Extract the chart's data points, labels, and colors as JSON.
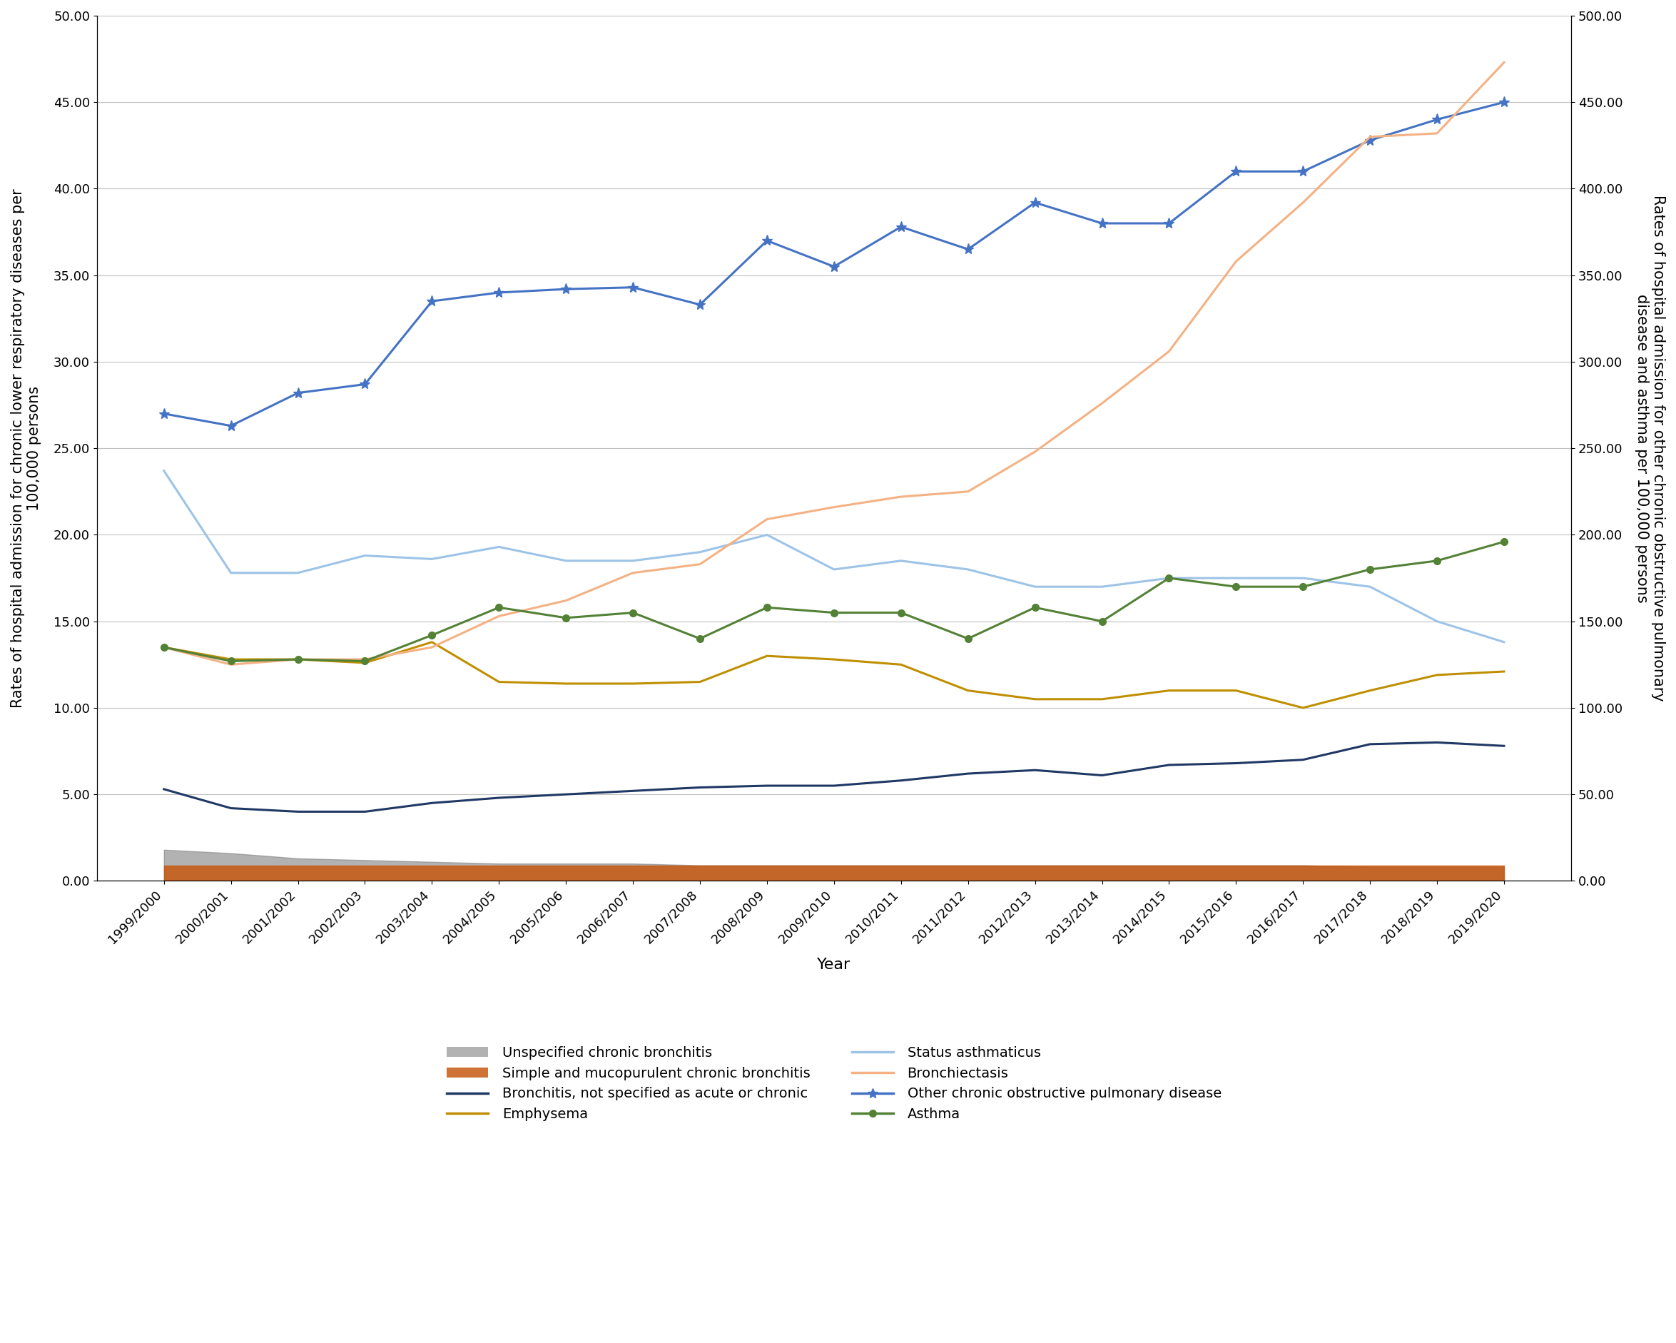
{
  "years": [
    "1999/2000",
    "2000/2001",
    "2001/2002",
    "2002/2003",
    "2003/2004",
    "2004/2005",
    "2005/2006",
    "2006/2007",
    "2007/2008",
    "2008/2009",
    "2009/2010",
    "2010/2011",
    "2011/2012",
    "2012/2013",
    "2013/2014",
    "2014/2015",
    "2015/2016",
    "2016/2017",
    "2017/2018",
    "2018/2019",
    "2019/2020"
  ],
  "unspecified_chronic_bronchitis": [
    1.8,
    1.6,
    1.3,
    1.2,
    1.1,
    1.0,
    1.0,
    1.0,
    0.9,
    0.9,
    0.9,
    0.9,
    0.9,
    0.9,
    0.9,
    0.9,
    0.9,
    0.9,
    0.8,
    0.8,
    0.8
  ],
  "simple_mucopurulent_bronchitis": [
    0.9,
    0.9,
    0.9,
    0.9,
    0.9,
    0.9,
    0.9,
    0.9,
    0.9,
    0.9,
    0.9,
    0.9,
    0.9,
    0.9,
    0.9,
    0.9,
    0.9,
    0.9,
    0.9,
    0.9,
    0.9
  ],
  "bronchitis_not_acute_chronic": [
    5.3,
    4.2,
    4.0,
    4.0,
    4.5,
    4.8,
    5.0,
    5.2,
    5.4,
    5.5,
    5.5,
    5.8,
    6.2,
    6.4,
    6.1,
    6.7,
    6.8,
    7.0,
    7.9,
    8.0,
    7.8
  ],
  "emphysema": [
    13.5,
    12.8,
    12.8,
    12.6,
    13.8,
    11.5,
    11.4,
    11.4,
    11.5,
    13.0,
    12.8,
    12.5,
    11.0,
    10.5,
    10.5,
    11.0,
    11.0,
    10.0,
    11.0,
    11.9,
    12.1
  ],
  "status_asthmaticus": [
    23.7,
    17.8,
    17.8,
    18.8,
    18.6,
    19.3,
    18.5,
    18.5,
    19.0,
    20.0,
    18.0,
    18.5,
    18.0,
    17.0,
    17.0,
    17.5,
    17.5,
    17.5,
    17.0,
    15.0,
    13.8
  ],
  "other_copd": [
    27.0,
    26.3,
    28.2,
    28.7,
    33.5,
    34.0,
    34.2,
    34.3,
    33.3,
    37.0,
    35.5,
    37.8,
    36.5,
    39.2,
    38.0,
    38.0,
    41.0,
    41.0,
    42.8,
    44.0,
    45.0
  ],
  "bronchiectasis": [
    135,
    125,
    128,
    128,
    135,
    153,
    162,
    178,
    183,
    209,
    216,
    222,
    225,
    248,
    276,
    306,
    358,
    392,
    430,
    432,
    473
  ],
  "asthma": [
    135,
    127,
    128,
    127,
    142,
    158,
    152,
    155,
    140,
    158,
    155,
    155,
    140,
    158,
    150,
    175,
    170,
    170,
    180,
    185,
    196
  ],
  "unspecified_chronic_bronchitis_color": "#808080",
  "simple_mucopurulent_bronchitis_color": "#C65911",
  "bronchitis_not_acute_chronic_color": "#203864",
  "emphysema_color": "#BF8F00",
  "status_asthmaticus_color": "#9DC3E6",
  "bronchiectasis_color": "#F4B183",
  "other_copd_color": "#4472C4",
  "asthma_color": "#538135",
  "left_ylabel": "Rates of hospital admission for chronic lower respiratory diseases per\n100,000 persons",
  "right_ylabel": "Rates of hospital admission for other chronic obstructive pulmonary\ndisease and asthma per 100,000 persons",
  "xlabel": "Year",
  "ylim_left": [
    0,
    50
  ],
  "ylim_right": [
    0,
    500
  ],
  "yticks_left": [
    0.0,
    5.0,
    10.0,
    15.0,
    20.0,
    25.0,
    30.0,
    35.0,
    40.0,
    45.0,
    50.0
  ],
  "yticks_right": [
    0.0,
    50.0,
    100.0,
    150.0,
    200.0,
    250.0,
    300.0,
    350.0,
    400.0,
    450.0,
    500.0
  ],
  "background_color": "#ffffff",
  "grid_color": "#c0c0c0"
}
